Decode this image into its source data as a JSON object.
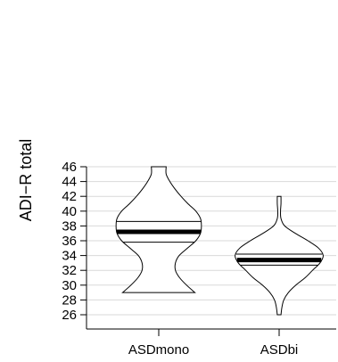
{
  "chart_data": {
    "type": "violin",
    "title": "",
    "xlabel": "",
    "ylabel": "ADI−R total",
    "ylim": [
      26,
      46
    ],
    "yticks": [
      26,
      28,
      30,
      32,
      34,
      36,
      38,
      40,
      42,
      44,
      46
    ],
    "ytick_labels": [
      "26",
      "28",
      "30",
      "32",
      "34",
      "36",
      "38",
      "40",
      "42",
      "44",
      "46"
    ],
    "grid": true,
    "categories": [
      "ASDmono",
      "ASDbi"
    ],
    "series": [
      {
        "category": "ASDmono",
        "min": 29,
        "max": 46,
        "median": 37.2,
        "ci_low": 35.8,
        "ci_high": 38.6,
        "outline": [
          [
            29,
            0.78
          ],
          [
            30,
            0.6
          ],
          [
            31,
            0.45
          ],
          [
            32,
            0.36
          ],
          [
            33,
            0.36
          ],
          [
            34,
            0.44
          ],
          [
            35,
            0.62
          ],
          [
            36,
            0.8
          ],
          [
            37,
            0.9
          ],
          [
            38,
            0.92
          ],
          [
            39,
            0.9
          ],
          [
            40,
            0.8
          ],
          [
            41,
            0.63
          ],
          [
            42,
            0.48
          ],
          [
            43,
            0.35
          ],
          [
            44,
            0.24
          ],
          [
            45,
            0.16
          ],
          [
            46,
            0.16
          ]
        ]
      },
      {
        "category": "ASDbi",
        "min": 26,
        "max": 42,
        "median": 33.4,
        "ci_low": 32.7,
        "ci_high": 34.2,
        "outline": [
          [
            26,
            0.04
          ],
          [
            27,
            0.06
          ],
          [
            28,
            0.1
          ],
          [
            29,
            0.2
          ],
          [
            30,
            0.36
          ],
          [
            31,
            0.56
          ],
          [
            32,
            0.72
          ],
          [
            33,
            0.88
          ],
          [
            34,
            0.95
          ],
          [
            35,
            0.85
          ],
          [
            36,
            0.62
          ],
          [
            37,
            0.35
          ],
          [
            38,
            0.12
          ],
          [
            39,
            0.04
          ],
          [
            40,
            0.03
          ],
          [
            41,
            0.04
          ],
          [
            42,
            0.04
          ]
        ]
      }
    ]
  }
}
